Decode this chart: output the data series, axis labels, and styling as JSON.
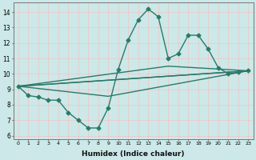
{
  "title": "",
  "xlabel": "Humidex (Indice chaleur)",
  "ylabel": "",
  "background_color": "#cce8e8",
  "grid_color": "#aacccc",
  "line_color": "#2a7a6a",
  "xlim": [
    -0.5,
    23.5
  ],
  "ylim": [
    5.8,
    14.6
  ],
  "yticks": [
    6,
    7,
    8,
    9,
    10,
    11,
    12,
    13,
    14
  ],
  "xticks": [
    0,
    1,
    2,
    3,
    4,
    5,
    6,
    7,
    8,
    9,
    10,
    11,
    12,
    13,
    14,
    15,
    16,
    17,
    18,
    19,
    20,
    21,
    22,
    23
  ],
  "main_series": {
    "x": [
      0,
      1,
      2,
      3,
      4,
      5,
      6,
      7,
      8,
      9,
      10,
      11,
      12,
      13,
      14,
      15,
      16,
      17,
      18,
      19,
      20,
      21,
      22,
      23
    ],
    "y": [
      9.2,
      8.6,
      8.5,
      8.3,
      8.3,
      7.5,
      7.0,
      6.5,
      6.5,
      7.8,
      10.3,
      12.2,
      13.5,
      14.2,
      13.7,
      11.0,
      11.3,
      12.5,
      12.5,
      11.6,
      10.4,
      10.0,
      10.1,
      10.2
    ]
  },
  "trend_lines": [
    {
      "x": [
        0,
        23
      ],
      "y": [
        9.2,
        10.2
      ]
    },
    {
      "x": [
        0,
        23
      ],
      "y": [
        9.2,
        10.2
      ]
    },
    {
      "x": [
        0,
        9,
        23
      ],
      "y": [
        9.2,
        8.55,
        10.2
      ]
    },
    {
      "x": [
        0,
        15,
        23
      ],
      "y": [
        9.2,
        10.5,
        10.2
      ]
    }
  ],
  "marker": "D",
  "markersize": 2.5,
  "linewidth": 1.0
}
